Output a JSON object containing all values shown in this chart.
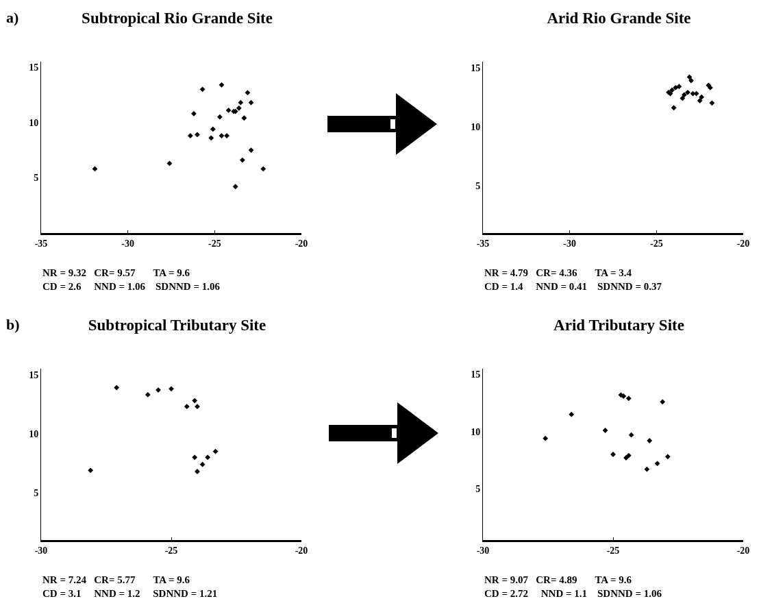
{
  "chart_data": [
    {
      "type": "scatter",
      "title": "Subtropical Rio Grande Site",
      "marker": "diamond",
      "grid": false,
      "xlim": [
        -35,
        -20
      ],
      "ylim": [
        0,
        15.5
      ],
      "xticks": [
        -35,
        -30,
        -25,
        -20
      ],
      "yticks": [
        5,
        10,
        15
      ],
      "series": [
        {
          "color": "#000000",
          "x": [
            -31.9,
            -27.6,
            -26.4,
            -26.0,
            -26.2,
            -25.7,
            -25.2,
            -25.1,
            -24.7,
            -24.6,
            -24.6,
            -24.3,
            -24.2,
            -23.9,
            -23.8,
            -23.8,
            -23.6,
            -23.5,
            -23.4,
            -23.3,
            -23.1,
            -22.9,
            -22.9,
            -22.2
          ],
          "values": [
            5.8,
            6.3,
            8.8,
            8.9,
            10.8,
            13.0,
            8.6,
            9.4,
            10.5,
            13.4,
            8.8,
            8.8,
            11.1,
            11.0,
            11.0,
            4.2,
            11.3,
            11.8,
            6.6,
            10.4,
            12.7,
            11.8,
            7.5,
            5.8
          ]
        }
      ],
      "annotations": [
        "a)",
        "NR = 9.32   CR= 9.57       TA = 9.6",
        "CD = 2.6     NND = 1.06    SDNND = 1.06"
      ]
    },
    {
      "type": "scatter",
      "title": "Arid Rio Grande Site",
      "marker": "diamond",
      "grid": false,
      "xlim": [
        -35,
        -20
      ],
      "ylim": [
        1,
        15.5
      ],
      "xticks": [
        -35,
        -30,
        -25,
        -20
      ],
      "yticks": [
        5,
        10,
        15
      ],
      "series": [
        {
          "color": "#000000",
          "x": [
            -23.1,
            -23.0,
            -24.3,
            -24.1,
            -23.9,
            -23.7,
            -24.2,
            -24.0,
            -23.5,
            -23.4,
            -23.2,
            -22.9,
            -22.7,
            -22.5,
            -22.4,
            -22.0,
            -21.9,
            -21.8
          ],
          "values": [
            14.2,
            13.9,
            12.9,
            13.1,
            13.3,
            13.4,
            12.8,
            11.6,
            12.4,
            12.7,
            12.9,
            12.8,
            12.8,
            12.2,
            12.5,
            13.5,
            13.3,
            12.0
          ]
        }
      ],
      "annotations": [
        "NR = 4.79   CR= 4.36       TA = 3.4",
        "CD = 1.4     NND = 0.41    SDNND = 0.37"
      ]
    },
    {
      "type": "scatter",
      "title": "Subtropical Tributary Site",
      "marker": "diamond",
      "grid": false,
      "xlim": [
        -30,
        -20
      ],
      "ylim": [
        1,
        15.5
      ],
      "xticks": [
        -30,
        -25,
        -20
      ],
      "yticks": [
        5,
        10,
        15
      ],
      "series": [
        {
          "color": "#000000",
          "x": [
            -28.1,
            -27.1,
            -25.9,
            -25.5,
            -25.0,
            -24.4,
            -24.1,
            -24.0,
            -24.1,
            -24.0,
            -23.8,
            -23.6,
            -23.3
          ],
          "values": [
            6.9,
            13.9,
            13.3,
            13.7,
            13.8,
            12.3,
            12.8,
            12.3,
            8.0,
            6.8,
            7.4,
            8.0,
            8.5
          ]
        }
      ],
      "annotations": [
        "b)",
        "NR = 7.24   CR= 5.77       TA = 9.6",
        "CD = 3.1     NND = 1.2     SDNND = 1.21"
      ]
    },
    {
      "type": "scatter",
      "title": "Arid Tributary Site",
      "marker": "diamond",
      "grid": false,
      "xlim": [
        -30,
        -20
      ],
      "ylim": [
        0.5,
        15.5
      ],
      "xticks": [
        -30,
        -25,
        -20
      ],
      "yticks": [
        5,
        10,
        15
      ],
      "series": [
        {
          "color": "#000000",
          "x": [
            -27.6,
            -26.6,
            -25.3,
            -25.0,
            -24.7,
            -24.6,
            -24.4,
            -24.5,
            -24.4,
            -24.3,
            -23.7,
            -23.6,
            -23.3,
            -23.1,
            -22.9
          ],
          "values": [
            9.4,
            11.5,
            10.1,
            8.0,
            13.2,
            13.1,
            12.9,
            7.7,
            7.9,
            9.7,
            6.7,
            9.2,
            7.2,
            12.6,
            7.8
          ]
        }
      ],
      "annotations": [
        "NR = 9.07   CR= 4.89       TA = 9.6",
        "CD = 2.72     NND = 1.1    SDNND = 1.06"
      ]
    }
  ]
}
